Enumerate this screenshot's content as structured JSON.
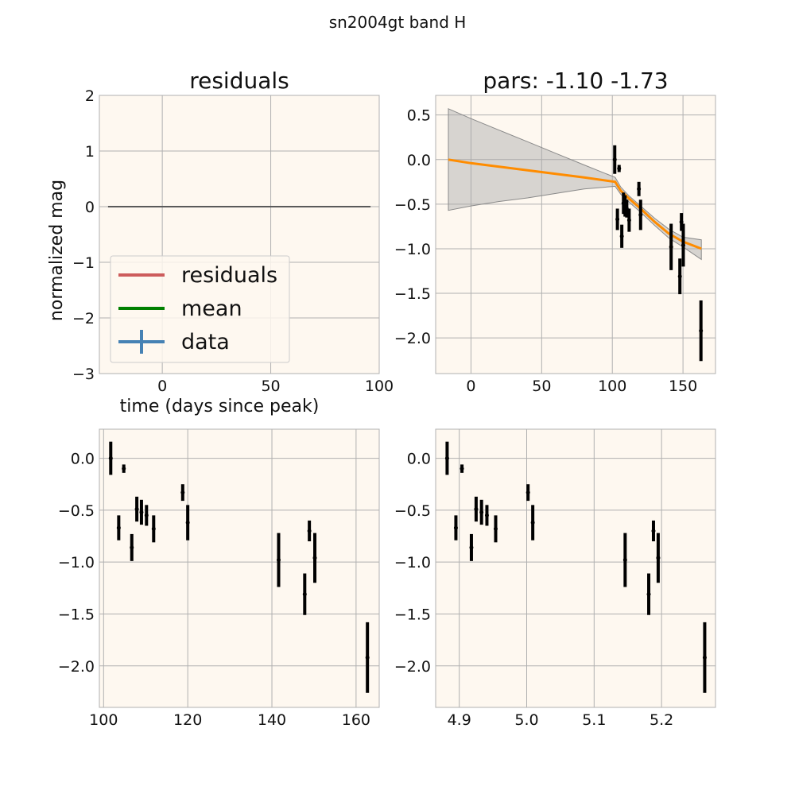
{
  "figure": {
    "suptitle": "sn2004gt band H",
    "colors": {
      "panel_bg": "#fef8f0",
      "grid": "#b0b0b0",
      "spine": "#b0b0b0",
      "data": "#000000",
      "model": "#ff8c00",
      "band": "#a8a8a8",
      "residual_line": "#5a5a5a"
    }
  },
  "chart_data": [
    {
      "panel": "top-left",
      "type": "line",
      "title": "residuals",
      "xlabel": "time (days since peak)",
      "ylabel": "normalized mag",
      "xlim": [
        -29,
        100
      ],
      "ylim": [
        -3,
        2
      ],
      "xticks": [
        0,
        50,
        100
      ],
      "yticks": [
        -3,
        -2,
        -1,
        0,
        1,
        2
      ],
      "grid": true,
      "legend_position": "lower-left",
      "legend": [
        {
          "label": "residuals",
          "color": "#cd5c5c",
          "kind": "line"
        },
        {
          "label": "mean",
          "color": "#008000",
          "kind": "line"
        },
        {
          "label": "data",
          "color": "#4682b4",
          "kind": "errorbar"
        }
      ],
      "series": [
        {
          "x": [
            -25,
            96
          ],
          "y": [
            0,
            0
          ],
          "color": "#5a5a5a"
        }
      ]
    },
    {
      "panel": "top-right",
      "type": "line",
      "title": "pars: -1.10 -1.73",
      "xlim": [
        -25,
        173
      ],
      "ylim": [
        -2.4,
        0.72
      ],
      "xticks": [
        0,
        50,
        100,
        150
      ],
      "yticks": [
        -2.0,
        -1.5,
        -1.0,
        -0.5,
        0.0,
        0.5
      ],
      "grid": true,
      "model": {
        "x": [
          -16,
          0,
          20,
          40,
          60,
          80,
          102,
          106,
          112,
          120,
          130,
          140,
          150,
          163
        ],
        "y": [
          0.0,
          -0.04,
          -0.08,
          -0.12,
          -0.16,
          -0.2,
          -0.25,
          -0.35,
          -0.44,
          -0.55,
          -0.7,
          -0.83,
          -0.92,
          -1.0
        ],
        "upper": [
          0.57,
          0.46,
          0.33,
          0.2,
          0.07,
          -0.06,
          -0.2,
          -0.31,
          -0.41,
          -0.52,
          -0.66,
          -0.78,
          -0.87,
          -0.9
        ],
        "lower": [
          -0.57,
          -0.52,
          -0.47,
          -0.43,
          -0.38,
          -0.33,
          -0.3,
          -0.39,
          -0.48,
          -0.59,
          -0.74,
          -0.88,
          -0.98,
          -1.12
        ]
      },
      "points": [
        {
          "x": 101.7,
          "y": 0.0,
          "err": 0.16
        },
        {
          "x": 103.6,
          "y": -0.67,
          "err": 0.12
        },
        {
          "x": 104.8,
          "y": -0.1,
          "err": 0.04
        },
        {
          "x": 106.7,
          "y": -0.86,
          "err": 0.13
        },
        {
          "x": 107.9,
          "y": -0.49,
          "err": 0.12
        },
        {
          "x": 109.0,
          "y": -0.52,
          "err": 0.12
        },
        {
          "x": 110.2,
          "y": -0.55,
          "err": 0.1
        },
        {
          "x": 111.9,
          "y": -0.68,
          "err": 0.13
        },
        {
          "x": 118.8,
          "y": -0.33,
          "err": 0.08
        },
        {
          "x": 120.0,
          "y": -0.62,
          "err": 0.17
        },
        {
          "x": 141.6,
          "y": -0.98,
          "err": 0.26
        },
        {
          "x": 147.8,
          "y": -1.31,
          "err": 0.2
        },
        {
          "x": 148.9,
          "y": -0.7,
          "err": 0.1
        },
        {
          "x": 150.2,
          "y": -0.96,
          "err": 0.24
        },
        {
          "x": 162.7,
          "y": -1.92,
          "err": 0.34
        }
      ]
    },
    {
      "panel": "bottom-left",
      "type": "scatter",
      "xlim": [
        99,
        165.5
      ],
      "ylim": [
        -2.4,
        0.28
      ],
      "xticks": [
        100,
        120,
        140,
        160
      ],
      "yticks": [
        -2.0,
        -1.5,
        -1.0,
        -0.5,
        0.0
      ],
      "grid": true,
      "points": [
        {
          "x": 101.7,
          "y": 0.0,
          "err": 0.16
        },
        {
          "x": 103.6,
          "y": -0.67,
          "err": 0.12
        },
        {
          "x": 104.8,
          "y": -0.1,
          "err": 0.04
        },
        {
          "x": 106.7,
          "y": -0.86,
          "err": 0.13
        },
        {
          "x": 107.9,
          "y": -0.49,
          "err": 0.12
        },
        {
          "x": 109.0,
          "y": -0.52,
          "err": 0.12
        },
        {
          "x": 110.2,
          "y": -0.55,
          "err": 0.1
        },
        {
          "x": 111.9,
          "y": -0.68,
          "err": 0.13
        },
        {
          "x": 118.8,
          "y": -0.33,
          "err": 0.08
        },
        {
          "x": 120.0,
          "y": -0.62,
          "err": 0.17
        },
        {
          "x": 141.6,
          "y": -0.98,
          "err": 0.26
        },
        {
          "x": 147.8,
          "y": -1.31,
          "err": 0.2
        },
        {
          "x": 148.9,
          "y": -0.7,
          "err": 0.1
        },
        {
          "x": 150.2,
          "y": -0.96,
          "err": 0.24
        },
        {
          "x": 162.7,
          "y": -1.92,
          "err": 0.34
        }
      ]
    },
    {
      "panel": "bottom-right",
      "type": "scatter",
      "xlim": [
        4.865,
        5.28
      ],
      "ylim": [
        -2.4,
        0.28
      ],
      "xticks": [
        4.9,
        5.0,
        5.1,
        5.2
      ],
      "xtick_labels": [
        "4.9",
        "5.0",
        "5.1",
        "5.2"
      ],
      "yticks": [
        -2.0,
        -1.5,
        -1.0,
        -0.5,
        0.0
      ],
      "grid": true,
      "points": [
        {
          "x": 4.882,
          "y": 0.0,
          "err": 0.16
        },
        {
          "x": 4.895,
          "y": -0.67,
          "err": 0.12
        },
        {
          "x": 4.904,
          "y": -0.1,
          "err": 0.04
        },
        {
          "x": 4.918,
          "y": -0.86,
          "err": 0.13
        },
        {
          "x": 4.925,
          "y": -0.49,
          "err": 0.12
        },
        {
          "x": 4.933,
          "y": -0.52,
          "err": 0.12
        },
        {
          "x": 4.941,
          "y": -0.55,
          "err": 0.1
        },
        {
          "x": 4.954,
          "y": -0.68,
          "err": 0.13
        },
        {
          "x": 5.002,
          "y": -0.33,
          "err": 0.08
        },
        {
          "x": 5.009,
          "y": -0.62,
          "err": 0.17
        },
        {
          "x": 5.146,
          "y": -0.98,
          "err": 0.26
        },
        {
          "x": 5.181,
          "y": -1.31,
          "err": 0.2
        },
        {
          "x": 5.188,
          "y": -0.7,
          "err": 0.1
        },
        {
          "x": 5.195,
          "y": -0.96,
          "err": 0.24
        },
        {
          "x": 5.264,
          "y": -1.92,
          "err": 0.34
        }
      ]
    }
  ]
}
